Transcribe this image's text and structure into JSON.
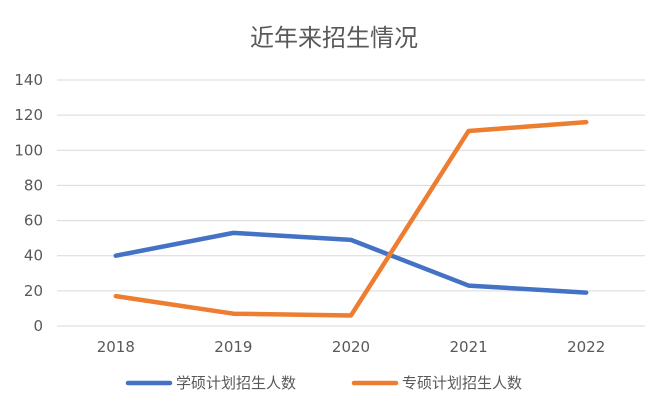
{
  "chart_data": {
    "type": "line",
    "title": "近年来招生情况",
    "xlabel": "",
    "ylabel": "",
    "categories": [
      "2018",
      "2019",
      "2020",
      "2021",
      "2022"
    ],
    "ylim": [
      0,
      140
    ],
    "yticks": [
      0,
      20,
      40,
      60,
      80,
      100,
      120,
      140
    ],
    "grid": true,
    "legend_position": "bottom",
    "series": [
      {
        "name": "学硕计划招生人数",
        "color": "#4472c4",
        "values": [
          40,
          53,
          49,
          23,
          19
        ]
      },
      {
        "name": "专硕计划招生人数",
        "color": "#ed7d31",
        "values": [
          17,
          7,
          6,
          111,
          116
        ]
      }
    ]
  }
}
